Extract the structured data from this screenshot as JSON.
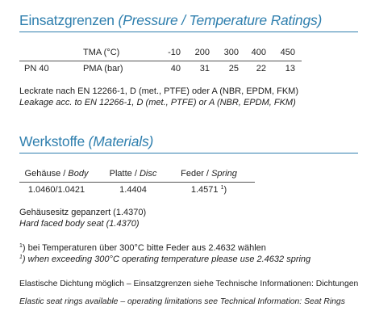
{
  "section_pressure": {
    "title_de": "Einsatzgrenzen",
    "title_en": "(Pressure / Temperature Ratings)"
  },
  "pressure_table": {
    "temp_label": "TMA (°C)",
    "temps": [
      "-10",
      "200",
      "300",
      "400",
      "450"
    ],
    "pn_label": "PN 40",
    "pma_label": "PMA (bar)",
    "pmas": [
      "40",
      "31",
      "25",
      "22",
      "13"
    ]
  },
  "leakage": {
    "de": "Leckrate nach EN 12266-1, D (met., PTFE) oder A (NBR, EPDM, FKM)",
    "en": "Leakage acc. to EN 12266-1, D (met., PTFE) or A (NBR, EPDM, FKM)"
  },
  "section_materials": {
    "title_de": "Werkstoffe",
    "title_en": "(Materials)"
  },
  "materials_table": {
    "body_de": "Gehäuse /",
    "body_en": "Body",
    "disc_de": "Platte /",
    "disc_en": "Disc",
    "spring_de": "Feder /",
    "spring_en": "Spring",
    "body_value": "1.0460/1.0421",
    "disc_value": "1.4404",
    "spring_value": "1.4571",
    "spring_note_mark": "1",
    "spring_note_paren": ")"
  },
  "body_seat": {
    "de": "Gehäusesitz gepanzert (1.4370)",
    "en": "Hard faced body seat (1.4370)"
  },
  "footnote": {
    "mark": "1",
    "paren": ")",
    "de": " bei Temperaturen über 300°C bitte Feder aus 2.4632 wählen",
    "en": " when exceeding 300°C operating temperature please use 2.4632 spring"
  },
  "elastic": {
    "de": "Elastische Dichtung möglich – Einsatzgrenzen siehe Technische Informationen: Dichtungen",
    "en": "Elastic seat rings available – operating limitations see Technical Information: Seat Rings"
  },
  "colors": {
    "heading": "#2f7fae",
    "text": "#1e1e1e"
  }
}
